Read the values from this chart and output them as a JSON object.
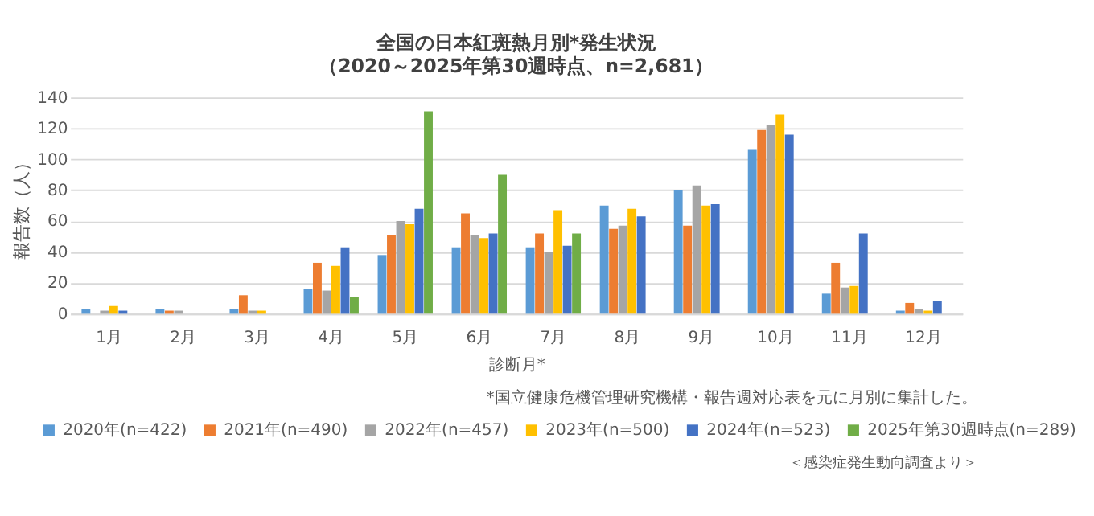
{
  "chart_data": {
    "type": "bar",
    "title": "全国の日本紅斑熱月別*発生状況",
    "subtitle": "（2020～2025年第30週時点、n=2,681）",
    "xlabel": "診断月*",
    "ylabel": "報告数（人）",
    "categories": [
      "1月",
      "2月",
      "3月",
      "4月",
      "5月",
      "6月",
      "7月",
      "8月",
      "9月",
      "10月",
      "11月",
      "12月"
    ],
    "series": [
      {
        "name": "2020年(n=422)",
        "color": "#5b9bd5",
        "values": [
          3,
          3,
          3,
          16,
          38,
          43,
          43,
          70,
          80,
          106,
          13,
          2
        ]
      },
      {
        "name": "2021年(n=490)",
        "color": "#ed7d31",
        "values": [
          0,
          2,
          12,
          33,
          51,
          65,
          52,
          55,
          57,
          119,
          33,
          7
        ]
      },
      {
        "name": "2022年(n=457)",
        "color": "#a5a5a5",
        "values": [
          2,
          2,
          2,
          15,
          60,
          51,
          40,
          57,
          83,
          122,
          17,
          3
        ]
      },
      {
        "name": "2023年(n=500)",
        "color": "#ffc000",
        "values": [
          5,
          0,
          2,
          31,
          58,
          49,
          67,
          68,
          70,
          129,
          18,
          2
        ]
      },
      {
        "name": "2024年(n=523)",
        "color": "#4472c4",
        "values": [
          2,
          0,
          0,
          43,
          68,
          52,
          44,
          63,
          71,
          116,
          52,
          8
        ]
      },
      {
        "name": "2025年第30週時点(n=289)",
        "color": "#70ad47",
        "values": [
          0,
          0,
          0,
          11,
          131,
          90,
          52,
          null,
          null,
          null,
          null,
          null
        ]
      }
    ],
    "ylim": [
      0,
      140
    ],
    "yticks": [
      0,
      20,
      40,
      60,
      80,
      100,
      120,
      140
    ],
    "grid": "y",
    "legend": "bottom",
    "annotations": [
      "*国立健康危機管理研究機構・報告週対応表を元に月別に集計した。",
      "＜感染症発生動向調査より＞"
    ]
  }
}
